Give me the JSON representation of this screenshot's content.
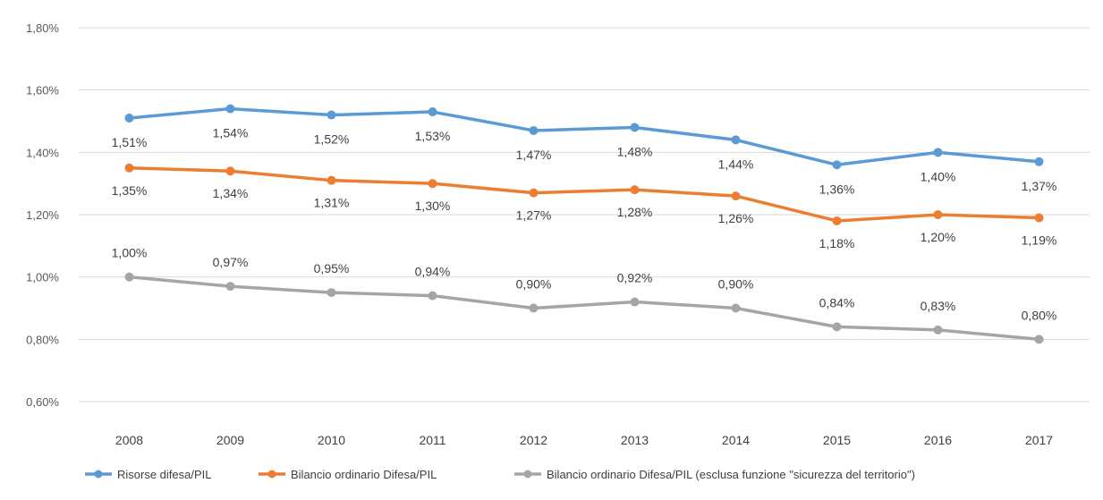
{
  "chart_data": {
    "type": "line",
    "title": "",
    "xlabel": "",
    "ylabel": "",
    "categories": [
      "2008",
      "2009",
      "2010",
      "2011",
      "2012",
      "2013",
      "2014",
      "2015",
      "2016",
      "2017"
    ],
    "ylim": [
      0.6,
      1.8
    ],
    "yticks": [
      0.6,
      0.8,
      1.0,
      1.2,
      1.4,
      1.6,
      1.8
    ],
    "ytick_labels": [
      "0,60%",
      "0,80%",
      "1,00%",
      "1,20%",
      "1,40%",
      "1,60%",
      "1,80%"
    ],
    "grid": true,
    "legend_position": "bottom",
    "series": [
      {
        "name": "Risorse difesa/PIL",
        "color": "#5b9bd5",
        "values": [
          1.51,
          1.54,
          1.52,
          1.53,
          1.47,
          1.48,
          1.44,
          1.36,
          1.4,
          1.37
        ],
        "labels": [
          "1,51%",
          "1,54%",
          "1,52%",
          "1,53%",
          "1,47%",
          "1,48%",
          "1,44%",
          "1,36%",
          "1,40%",
          "1,37%"
        ]
      },
      {
        "name": "Bilancio ordinario Difesa/PIL",
        "color": "#ed7d31",
        "values": [
          1.35,
          1.34,
          1.31,
          1.3,
          1.27,
          1.28,
          1.26,
          1.18,
          1.2,
          1.19
        ],
        "labels": [
          "1,35%",
          "1,34%",
          "1,31%",
          "1,30%",
          "1,27%",
          "1,28%",
          "1,26%",
          "1,18%",
          "1,20%",
          "1,19%"
        ]
      },
      {
        "name": "Bilancio ordinario Difesa/PIL (esclusa funzione \"sicurezza del territorio\")",
        "color": "#a5a5a5",
        "values": [
          1.0,
          0.97,
          0.95,
          0.94,
          0.9,
          0.92,
          0.9,
          0.84,
          0.83,
          0.8
        ],
        "labels": [
          "1,00%",
          "0,97%",
          "0,95%",
          "0,94%",
          "0,90%",
          "0,92%",
          "0,90%",
          "0,84%",
          "0,83%",
          "0,80%"
        ]
      }
    ]
  }
}
